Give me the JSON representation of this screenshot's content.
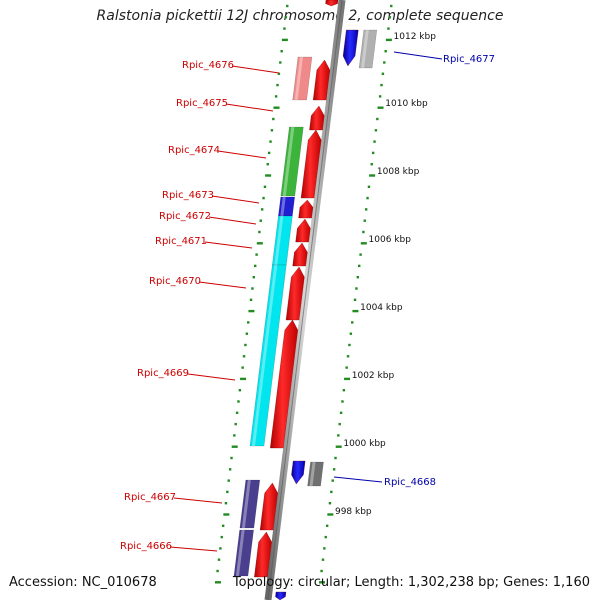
{
  "title": "Ralstonia pickettii 12J chromosome 2, complete sequence",
  "accession": "Accession: NC_010678",
  "topology": "Topology: circular; Length: 1,302,238 bp; Genes: 1,160",
  "colors": {
    "forward_gene": "#ff0000",
    "reverse_gene": "#0000cc",
    "forward_label": "#cc0000",
    "reverse_label": "#0000aa",
    "backbone": "#888888",
    "tick": "#228b22",
    "cog_pink": "#f08a8a",
    "cog_green": "#3cb43c",
    "cog_blue": "#2020d0",
    "cog_cyan": "#00e5ee",
    "cog_purple": "#4a3f8f",
    "cog_grey": "#b0b0b0",
    "cog_darkgrey": "#707070"
  },
  "scale_labels": [
    "1012 kbp",
    "1010 kbp",
    "1008 kbp",
    "1006 kbp",
    "1004 kbp",
    "1002 kbp",
    "1000 kbp",
    "998 kbp"
  ],
  "genes": [
    {
      "name": "Rpic_4677",
      "strand": "reverse"
    },
    {
      "name": "Rpic_4676",
      "strand": "forward"
    },
    {
      "name": "Rpic_4675",
      "strand": "forward"
    },
    {
      "name": "Rpic_4674",
      "strand": "forward"
    },
    {
      "name": "Rpic_4673",
      "strand": "forward"
    },
    {
      "name": "Rpic_4672",
      "strand": "forward"
    },
    {
      "name": "Rpic_4671",
      "strand": "forward"
    },
    {
      "name": "Rpic_4670",
      "strand": "forward"
    },
    {
      "name": "Rpic_4669",
      "strand": "forward"
    },
    {
      "name": "Rpic_4668",
      "strand": "reverse"
    },
    {
      "name": "Rpic_4667",
      "strand": "forward"
    },
    {
      "name": "Rpic_4666",
      "strand": "forward"
    }
  ]
}
